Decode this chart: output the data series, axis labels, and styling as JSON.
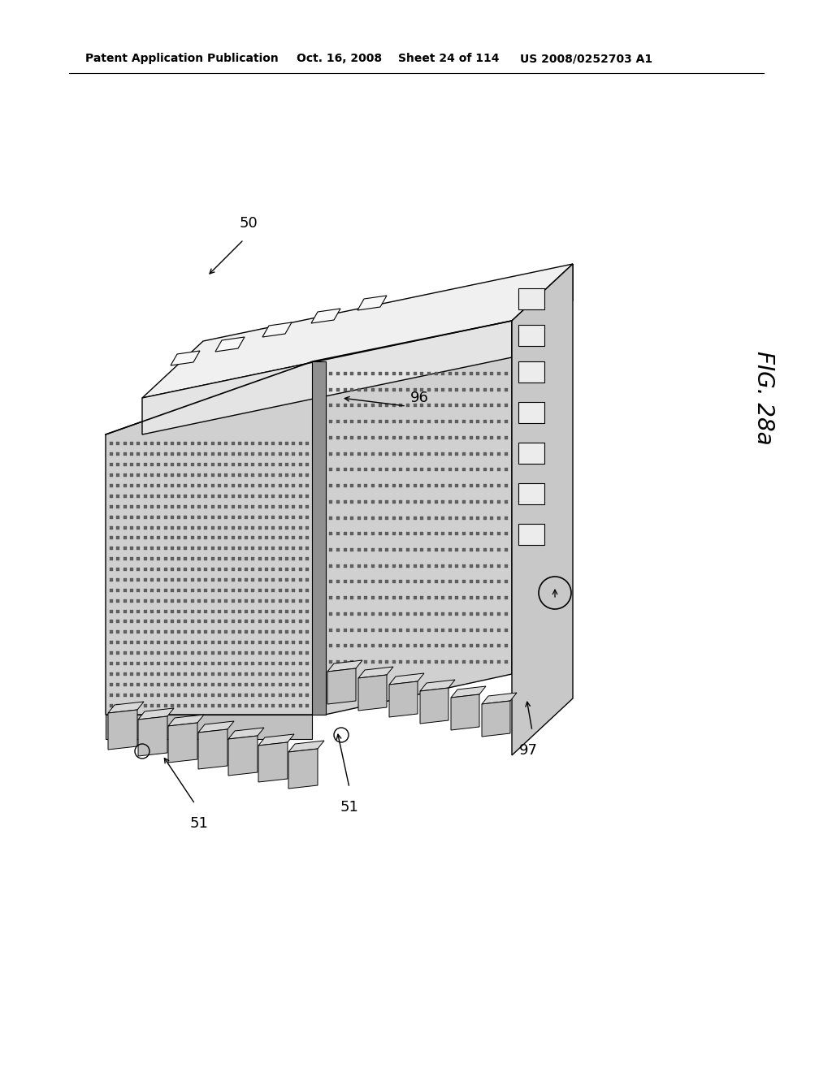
{
  "bg_color": "#ffffff",
  "header_text": "Patent Application Publication",
  "header_date": "Oct. 16, 2008",
  "header_sheet": "Sheet 24 of 114",
  "header_patent": "US 2008/0252703 A1",
  "fig_label": "FIG. 28a",
  "label_50": "50",
  "label_51a": "51",
  "label_51b": "51",
  "label_96": "96",
  "label_97": "97",
  "col_top": "#f0f0f0",
  "col_front": "#e4e4e4",
  "col_right": "#c8c8c8",
  "col_dark": "#b0b0b0",
  "col_nozzle": "#606060",
  "col_chip_top": "#d8d8d8",
  "col_chip_front": "#c0c0c0"
}
